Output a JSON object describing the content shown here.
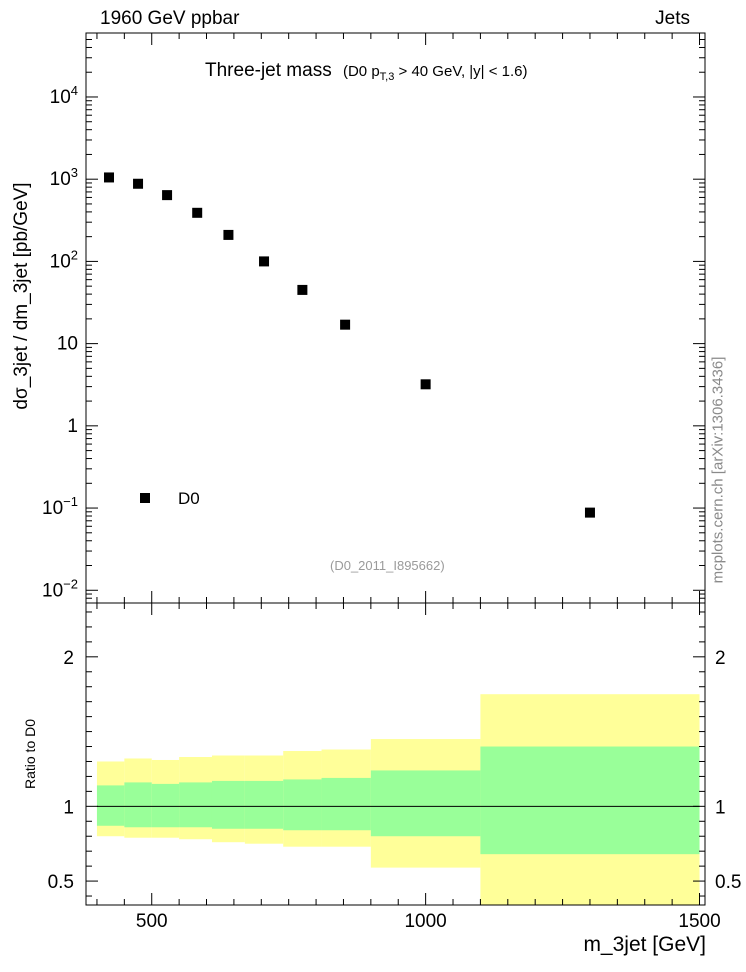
{
  "header": {
    "left": "1960 GeV ppbar",
    "right": "Jets"
  },
  "title": {
    "main": "Three-jet mass",
    "sub_prefix": "(D0 p",
    "sub_subscript": "T,3",
    "sub_suffix": " > 40 GeV, |y| < 1.6)"
  },
  "watermark": "mcplots.cern.ch [arXiv:1306.3436]",
  "reference_label": "(D0_2011_I895662)",
  "colors": {
    "inner_band": "#99ff99",
    "outer_band": "#ffff99",
    "marker": "#000000",
    "watermark": "#8a8a8a"
  },
  "chart_data": [
    {
      "type": "scatter",
      "panel": "main",
      "ylabel": "dσ_3jet / dm_3jet [pb/GeV]",
      "yscale": "log",
      "ylim": [
        0.007,
        60000
      ],
      "xlim": [
        380,
        1510
      ],
      "x_ticks": [
        500,
        1000,
        1500
      ],
      "y_ticks": [
        {
          "value": 0.01,
          "base": "10",
          "exp": "−2"
        },
        {
          "value": 0.1,
          "base": "10",
          "exp": "−1"
        },
        {
          "value": 1,
          "base": "1",
          "exp": ""
        },
        {
          "value": 10,
          "base": "10",
          "exp": ""
        },
        {
          "value": 100,
          "base": "10",
          "exp": "2"
        },
        {
          "value": 1000,
          "base": "10",
          "exp": "3"
        },
        {
          "value": 10000,
          "base": "10",
          "exp": "4"
        }
      ],
      "legend": {
        "entries": [
          "D0"
        ],
        "placement": "lower-left"
      },
      "series": [
        {
          "name": "D0",
          "x": [
            422,
            475,
            528,
            583,
            640,
            705,
            775,
            853,
            1000,
            1300
          ],
          "y": [
            1050,
            880,
            640,
            390,
            210,
            100,
            45,
            17,
            3.2,
            0.088
          ]
        }
      ]
    },
    {
      "type": "area",
      "panel": "ratio",
      "ylabel": "Ratio to D0",
      "ylim": [
        0.34,
        2.36
      ],
      "xlabel": "m_3jet [GeV]",
      "xlim": [
        380,
        1510
      ],
      "x_ticks": [
        500,
        1000,
        1500
      ],
      "y_ticks": [
        0.5,
        1,
        2
      ],
      "reference_line": 1,
      "bins": [
        {
          "lo": 400,
          "hi": 450,
          "inner_lo": 0.87,
          "inner_hi": 1.14,
          "outer_lo": 0.8,
          "outer_hi": 1.3
        },
        {
          "lo": 450,
          "hi": 500,
          "inner_lo": 0.86,
          "inner_hi": 1.16,
          "outer_lo": 0.79,
          "outer_hi": 1.32
        },
        {
          "lo": 500,
          "hi": 550,
          "inner_lo": 0.86,
          "inner_hi": 1.15,
          "outer_lo": 0.79,
          "outer_hi": 1.31
        },
        {
          "lo": 550,
          "hi": 610,
          "inner_lo": 0.86,
          "inner_hi": 1.16,
          "outer_lo": 0.78,
          "outer_hi": 1.33
        },
        {
          "lo": 610,
          "hi": 670,
          "inner_lo": 0.85,
          "inner_hi": 1.17,
          "outer_lo": 0.76,
          "outer_hi": 1.34
        },
        {
          "lo": 670,
          "hi": 740,
          "inner_lo": 0.85,
          "inner_hi": 1.17,
          "outer_lo": 0.75,
          "outer_hi": 1.34
        },
        {
          "lo": 740,
          "hi": 810,
          "inner_lo": 0.84,
          "inner_hi": 1.18,
          "outer_lo": 0.73,
          "outer_hi": 1.37
        },
        {
          "lo": 810,
          "hi": 900,
          "inner_lo": 0.84,
          "inner_hi": 1.19,
          "outer_lo": 0.73,
          "outer_hi": 1.38
        },
        {
          "lo": 900,
          "hi": 1100,
          "inner_lo": 0.8,
          "inner_hi": 1.24,
          "outer_lo": 0.59,
          "outer_hi": 1.45
        },
        {
          "lo": 1100,
          "hi": 1500,
          "inner_lo": 0.68,
          "inner_hi": 1.4,
          "outer_lo": 0.34,
          "outer_hi": 1.75
        }
      ]
    }
  ]
}
